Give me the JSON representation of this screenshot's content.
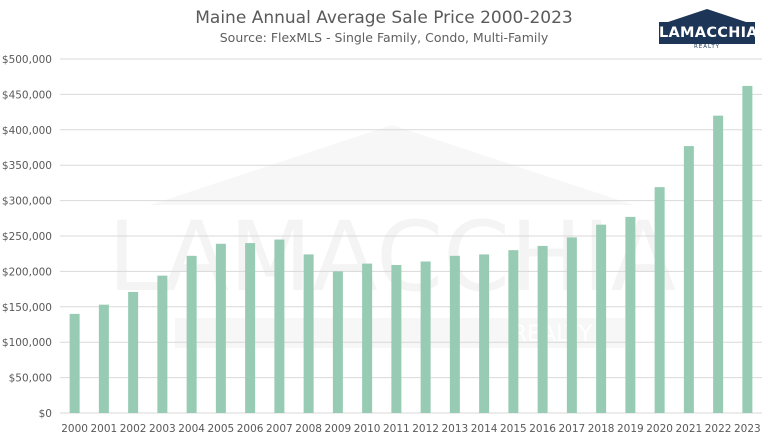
{
  "title": "Maine Annual Average Sale Price 2000-2023",
  "subtitle": "Source: FlexMLS - Single Family, Condo, Multi-Family",
  "logo": {
    "text": "LAMACCHIA",
    "subtext": "REALTY"
  },
  "watermark": {
    "text": "LAMACCHIA",
    "subtext": "REALTY"
  },
  "colors": {
    "bar": "#98cbb3",
    "grid": "#d9d9d9",
    "axis_text": "#595959",
    "logo_bg": "#1d3557"
  },
  "chart_data": {
    "type": "bar",
    "title": "Maine Annual Average Sale Price 2000-2023",
    "subtitle": "Source: FlexMLS - Single Family, Condo, Multi-Family",
    "categories": [
      "2000",
      "2001",
      "2002",
      "2003",
      "2004",
      "2005",
      "2006",
      "2007",
      "2008",
      "2009",
      "2010",
      "2011",
      "2012",
      "2013",
      "2014",
      "2015",
      "2016",
      "2017",
      "2018",
      "2019",
      "2020",
      "2021",
      "2022",
      "2023"
    ],
    "values": [
      140000,
      153000,
      171000,
      194000,
      222000,
      239000,
      240000,
      245000,
      224000,
      200000,
      211000,
      209000,
      214000,
      222000,
      224000,
      230000,
      236000,
      248000,
      266000,
      277000,
      319000,
      377000,
      420000,
      462000
    ],
    "ylim": [
      0,
      500000
    ],
    "yticks": [
      0,
      50000,
      100000,
      150000,
      200000,
      250000,
      300000,
      350000,
      400000,
      450000,
      500000
    ],
    "ytick_labels": [
      "$0",
      "$50,000",
      "$100,000",
      "$150,000",
      "$200,000",
      "$250,000",
      "$300,000",
      "$350,000",
      "$400,000",
      "$450,000",
      "$500,000"
    ],
    "grid": true,
    "legend": "none"
  }
}
